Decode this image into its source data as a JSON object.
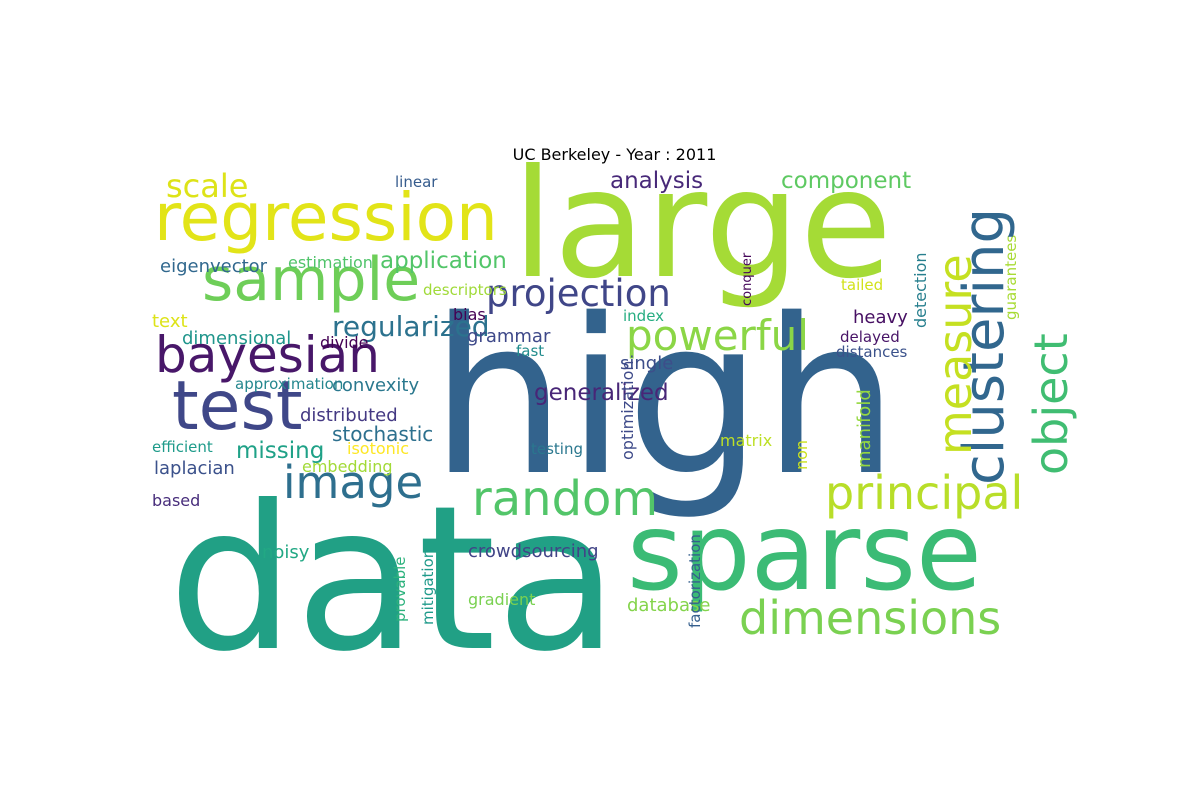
{
  "title": "UC Berkeley - Year : 2011",
  "words": [
    {
      "text": "data",
      "color": "#21a085"
    },
    {
      "text": "high",
      "color": "#33638d"
    },
    {
      "text": "large",
      "color": "#a5db36"
    },
    {
      "text": "sparse",
      "color": "#3bbb75"
    },
    {
      "text": "regression",
      "color": "#e2e418"
    },
    {
      "text": "sample",
      "color": "#6ece58"
    },
    {
      "text": "test",
      "color": "#3f4788"
    },
    {
      "text": "bayesian",
      "color": "#481769"
    },
    {
      "text": "image",
      "color": "#2e6f8e"
    },
    {
      "text": "random",
      "color": "#52c569"
    },
    {
      "text": "principal",
      "color": "#b8de29"
    },
    {
      "text": "dimensions",
      "color": "#7ad151"
    },
    {
      "text": "powerful",
      "color": "#8bd646"
    },
    {
      "text": "projection",
      "color": "#404688"
    },
    {
      "text": "scale",
      "color": "#dde318"
    },
    {
      "text": "analysis",
      "color": "#482979"
    },
    {
      "text": "component",
      "color": "#5ec962"
    },
    {
      "text": "application",
      "color": "#52c569"
    },
    {
      "text": "regularized",
      "color": "#2c728e"
    },
    {
      "text": "eigenvector",
      "color": "#31688e"
    },
    {
      "text": "estimation",
      "color": "#50c46a"
    },
    {
      "text": "text",
      "color": "#dde318"
    },
    {
      "text": "dimensional",
      "color": "#1f958b"
    },
    {
      "text": "divide",
      "color": "#440154"
    },
    {
      "text": "approximation",
      "color": "#24878e"
    },
    {
      "text": "convexity",
      "color": "#2a788e"
    },
    {
      "text": "distributed",
      "color": "#443983"
    },
    {
      "text": "stochastic",
      "color": "#2d708e"
    },
    {
      "text": "missing",
      "color": "#1fa187"
    },
    {
      "text": "efficient",
      "color": "#1e9b8a"
    },
    {
      "text": "isotonic",
      "color": "#fde725"
    },
    {
      "text": "laplacian",
      "color": "#3b518b"
    },
    {
      "text": "embedding",
      "color": "#a2da37"
    },
    {
      "text": "based",
      "color": "#472d7b"
    },
    {
      "text": "noisy",
      "color": "#22a884"
    },
    {
      "text": "crowdsourcing",
      "color": "#414487"
    },
    {
      "text": "gradient",
      "color": "#7ad151"
    },
    {
      "text": "database",
      "color": "#84d44b"
    },
    {
      "text": "generalized",
      "color": "#482677"
    },
    {
      "text": "grammar",
      "color": "#3e4989"
    },
    {
      "text": "bias",
      "color": "#440154"
    },
    {
      "text": "fast",
      "color": "#228c8d"
    },
    {
      "text": "single",
      "color": "#3d4e8a"
    },
    {
      "text": "testing",
      "color": "#2a778e"
    },
    {
      "text": "descriptors",
      "color": "#a0da39"
    },
    {
      "text": "index",
      "color": "#26ad81"
    },
    {
      "text": "matrix",
      "color": "#bddf26"
    },
    {
      "text": "linear",
      "color": "#365c8d"
    },
    {
      "text": "tailed",
      "color": "#d2e21b"
    },
    {
      "text": "heavy",
      "color": "#471063"
    },
    {
      "text": "delayed",
      "color": "#481467"
    },
    {
      "text": "distances",
      "color": "#3b528b"
    },
    {
      "text": "optimization",
      "color": "#3e4a89"
    },
    {
      "text": "conquer",
      "color": "#46075a"
    },
    {
      "text": "non",
      "color": "#cae11f"
    },
    {
      "text": "manifold",
      "color": "#95d840"
    },
    {
      "text": "detection",
      "color": "#277f8e"
    },
    {
      "text": "guarantees",
      "color": "#a8db34"
    },
    {
      "text": "provable",
      "color": "#2db27d"
    },
    {
      "text": "mitigation",
      "color": "#1f9a8a"
    },
    {
      "text": "factorization",
      "color": "#355f8d"
    },
    {
      "text": "clustering",
      "color": "#31678e"
    },
    {
      "text": "object",
      "color": "#40bd72"
    },
    {
      "text": "measure",
      "color": "#c5e021"
    }
  ]
}
